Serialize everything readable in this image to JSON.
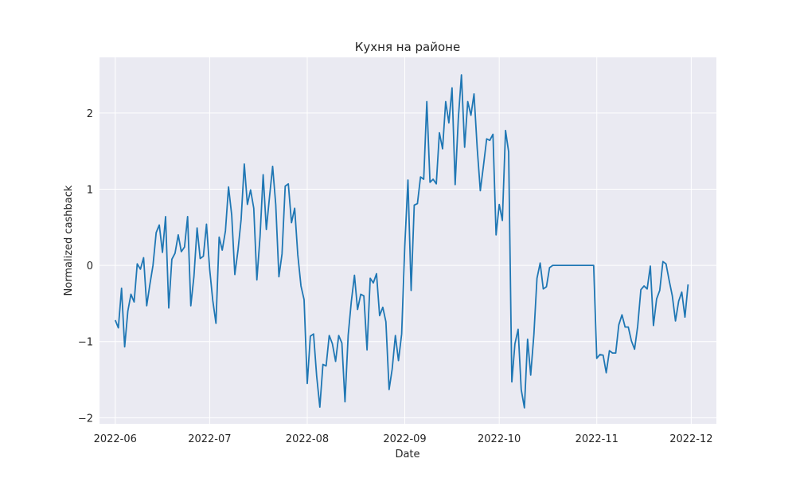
{
  "chart_data": {
    "type": "line",
    "title": "Кухня на районе",
    "xlabel": "Date",
    "ylabel": "Normalized cashback",
    "x_ticks": [
      "2022-06",
      "2022-07",
      "2022-08",
      "2022-09",
      "2022-10",
      "2022-11",
      "2022-12"
    ],
    "y_ticks": [
      -2,
      -1,
      0,
      1,
      2
    ],
    "ylim": [
      -2.08,
      2.73
    ],
    "xlim": [
      "2022-05-27",
      "2022-12-09"
    ],
    "grid": true,
    "background": "#eaeaf2",
    "line_color": "#1f77b4",
    "series": [
      {
        "x": [
          "2022-06-01",
          "2022-06-02",
          "2022-06-03",
          "2022-06-04",
          "2022-06-05",
          "2022-06-06",
          "2022-06-07",
          "2022-06-08",
          "2022-06-09",
          "2022-06-10",
          "2022-06-11",
          "2022-06-12",
          "2022-06-13",
          "2022-06-14",
          "2022-06-15",
          "2022-06-16",
          "2022-06-17",
          "2022-06-18",
          "2022-06-19",
          "2022-06-20",
          "2022-06-21",
          "2022-06-22",
          "2022-06-23",
          "2022-06-24",
          "2022-06-25",
          "2022-06-26",
          "2022-06-27",
          "2022-06-28",
          "2022-06-29",
          "2022-06-30",
          "2022-07-01",
          "2022-07-02",
          "2022-07-03",
          "2022-07-04",
          "2022-07-05",
          "2022-07-06",
          "2022-07-07",
          "2022-07-08",
          "2022-07-09",
          "2022-07-10",
          "2022-07-11",
          "2022-07-12",
          "2022-07-13",
          "2022-07-14",
          "2022-07-15",
          "2022-07-16",
          "2022-07-17",
          "2022-07-18",
          "2022-07-19",
          "2022-07-20",
          "2022-07-21",
          "2022-07-22",
          "2022-07-23",
          "2022-07-24",
          "2022-07-25",
          "2022-07-26",
          "2022-07-27",
          "2022-07-28",
          "2022-07-29",
          "2022-07-30",
          "2022-07-31",
          "2022-08-01",
          "2022-08-02",
          "2022-08-03",
          "2022-08-04",
          "2022-08-05",
          "2022-08-06",
          "2022-08-07",
          "2022-08-08",
          "2022-08-09",
          "2022-08-10",
          "2022-08-11",
          "2022-08-12",
          "2022-08-13",
          "2022-08-14",
          "2022-08-15",
          "2022-08-16",
          "2022-08-17",
          "2022-08-18",
          "2022-08-19",
          "2022-08-20",
          "2022-08-21",
          "2022-08-22",
          "2022-08-23",
          "2022-08-24",
          "2022-08-25",
          "2022-08-26",
          "2022-08-27",
          "2022-08-28",
          "2022-08-29",
          "2022-08-30",
          "2022-08-31",
          "2022-09-01",
          "2022-09-02",
          "2022-09-03",
          "2022-09-04",
          "2022-09-05",
          "2022-09-06",
          "2022-09-07",
          "2022-09-08",
          "2022-09-09",
          "2022-09-10",
          "2022-09-11",
          "2022-09-12",
          "2022-09-13",
          "2022-09-14",
          "2022-09-15",
          "2022-09-16",
          "2022-09-17",
          "2022-09-18",
          "2022-09-19",
          "2022-09-20",
          "2022-09-21",
          "2022-09-22",
          "2022-09-23",
          "2022-09-24",
          "2022-09-25",
          "2022-09-26",
          "2022-09-27",
          "2022-09-28",
          "2022-09-29",
          "2022-09-30",
          "2022-10-01",
          "2022-10-02",
          "2022-10-03",
          "2022-10-04",
          "2022-10-05",
          "2022-10-06",
          "2022-10-07",
          "2022-10-08",
          "2022-10-09",
          "2022-10-10",
          "2022-10-11",
          "2022-10-12",
          "2022-10-13",
          "2022-10-14",
          "2022-10-15",
          "2022-10-16",
          "2022-10-17",
          "2022-10-18",
          "2022-10-19",
          "2022-10-20",
          "2022-10-31",
          "2022-11-01",
          "2022-11-02",
          "2022-11-03",
          "2022-11-04",
          "2022-11-05",
          "2022-11-06",
          "2022-11-07",
          "2022-11-08",
          "2022-11-09",
          "2022-11-10",
          "2022-11-11",
          "2022-11-12",
          "2022-11-13",
          "2022-11-14",
          "2022-11-15",
          "2022-11-16",
          "2022-11-17",
          "2022-11-18",
          "2022-11-19",
          "2022-11-20",
          "2022-11-21",
          "2022-11-22",
          "2022-11-23",
          "2022-11-24",
          "2022-11-25",
          "2022-11-26",
          "2022-11-27",
          "2022-11-28",
          "2022-11-29",
          "2022-11-30"
        ],
        "y": [
          -0.72,
          -0.82,
          -0.3,
          -1.07,
          -0.6,
          -0.38,
          -0.48,
          0.02,
          -0.05,
          0.1,
          -0.53,
          -0.25,
          0.0,
          0.43,
          0.53,
          0.17,
          0.64,
          -0.56,
          0.08,
          0.16,
          0.4,
          0.18,
          0.24,
          0.64,
          -0.53,
          -0.15,
          0.49,
          0.09,
          0.12,
          0.54,
          -0.05,
          -0.46,
          -0.76,
          0.37,
          0.2,
          0.45,
          1.03,
          0.66,
          -0.12,
          0.2,
          0.6,
          1.33,
          0.8,
          0.99,
          0.75,
          -0.19,
          0.38,
          1.19,
          0.47,
          0.89,
          1.3,
          0.8,
          -0.15,
          0.15,
          1.04,
          1.07,
          0.56,
          0.75,
          0.14,
          -0.27,
          -0.45,
          -1.55,
          -0.93,
          -0.9,
          -1.45,
          -1.86,
          -1.3,
          -1.32,
          -0.92,
          -1.03,
          -1.26,
          -0.92,
          -1.02,
          -1.79,
          -0.92,
          -0.48,
          -0.13,
          -0.58,
          -0.38,
          -0.4,
          -1.11,
          -0.17,
          -0.23,
          -0.11,
          -0.66,
          -0.55,
          -0.74,
          -1.63,
          -1.36,
          -0.92,
          -1.25,
          -0.9,
          0.25,
          1.12,
          -0.33,
          0.79,
          0.81,
          1.16,
          1.13,
          2.15,
          1.09,
          1.13,
          1.07,
          1.74,
          1.53,
          2.15,
          1.87,
          2.33,
          1.06,
          1.93,
          2.5,
          1.55,
          2.15,
          1.97,
          2.25,
          1.54,
          0.98,
          1.31,
          1.66,
          1.64,
          1.72,
          0.4,
          0.8,
          0.59,
          1.77,
          1.49,
          -1.53,
          -1.03,
          -0.84,
          -1.63,
          -1.87,
          -0.97,
          -1.44,
          -0.91,
          -0.17,
          0.03,
          -0.31,
          -0.28,
          -0.03,
          0.0,
          0.0,
          0.0,
          0.0,
          -1.22,
          -1.17,
          -1.18,
          -1.41,
          -1.12,
          -1.15,
          -1.15,
          -0.78,
          -0.65,
          -0.81,
          -0.81,
          -0.99,
          -1.1,
          -0.8,
          -0.32,
          -0.27,
          -0.31,
          -0.01,
          -0.79,
          -0.44,
          -0.33,
          0.05,
          0.02,
          -0.2,
          -0.4,
          -0.73,
          -0.47,
          -0.35,
          -0.68,
          -0.25
        ]
      }
    ]
  }
}
